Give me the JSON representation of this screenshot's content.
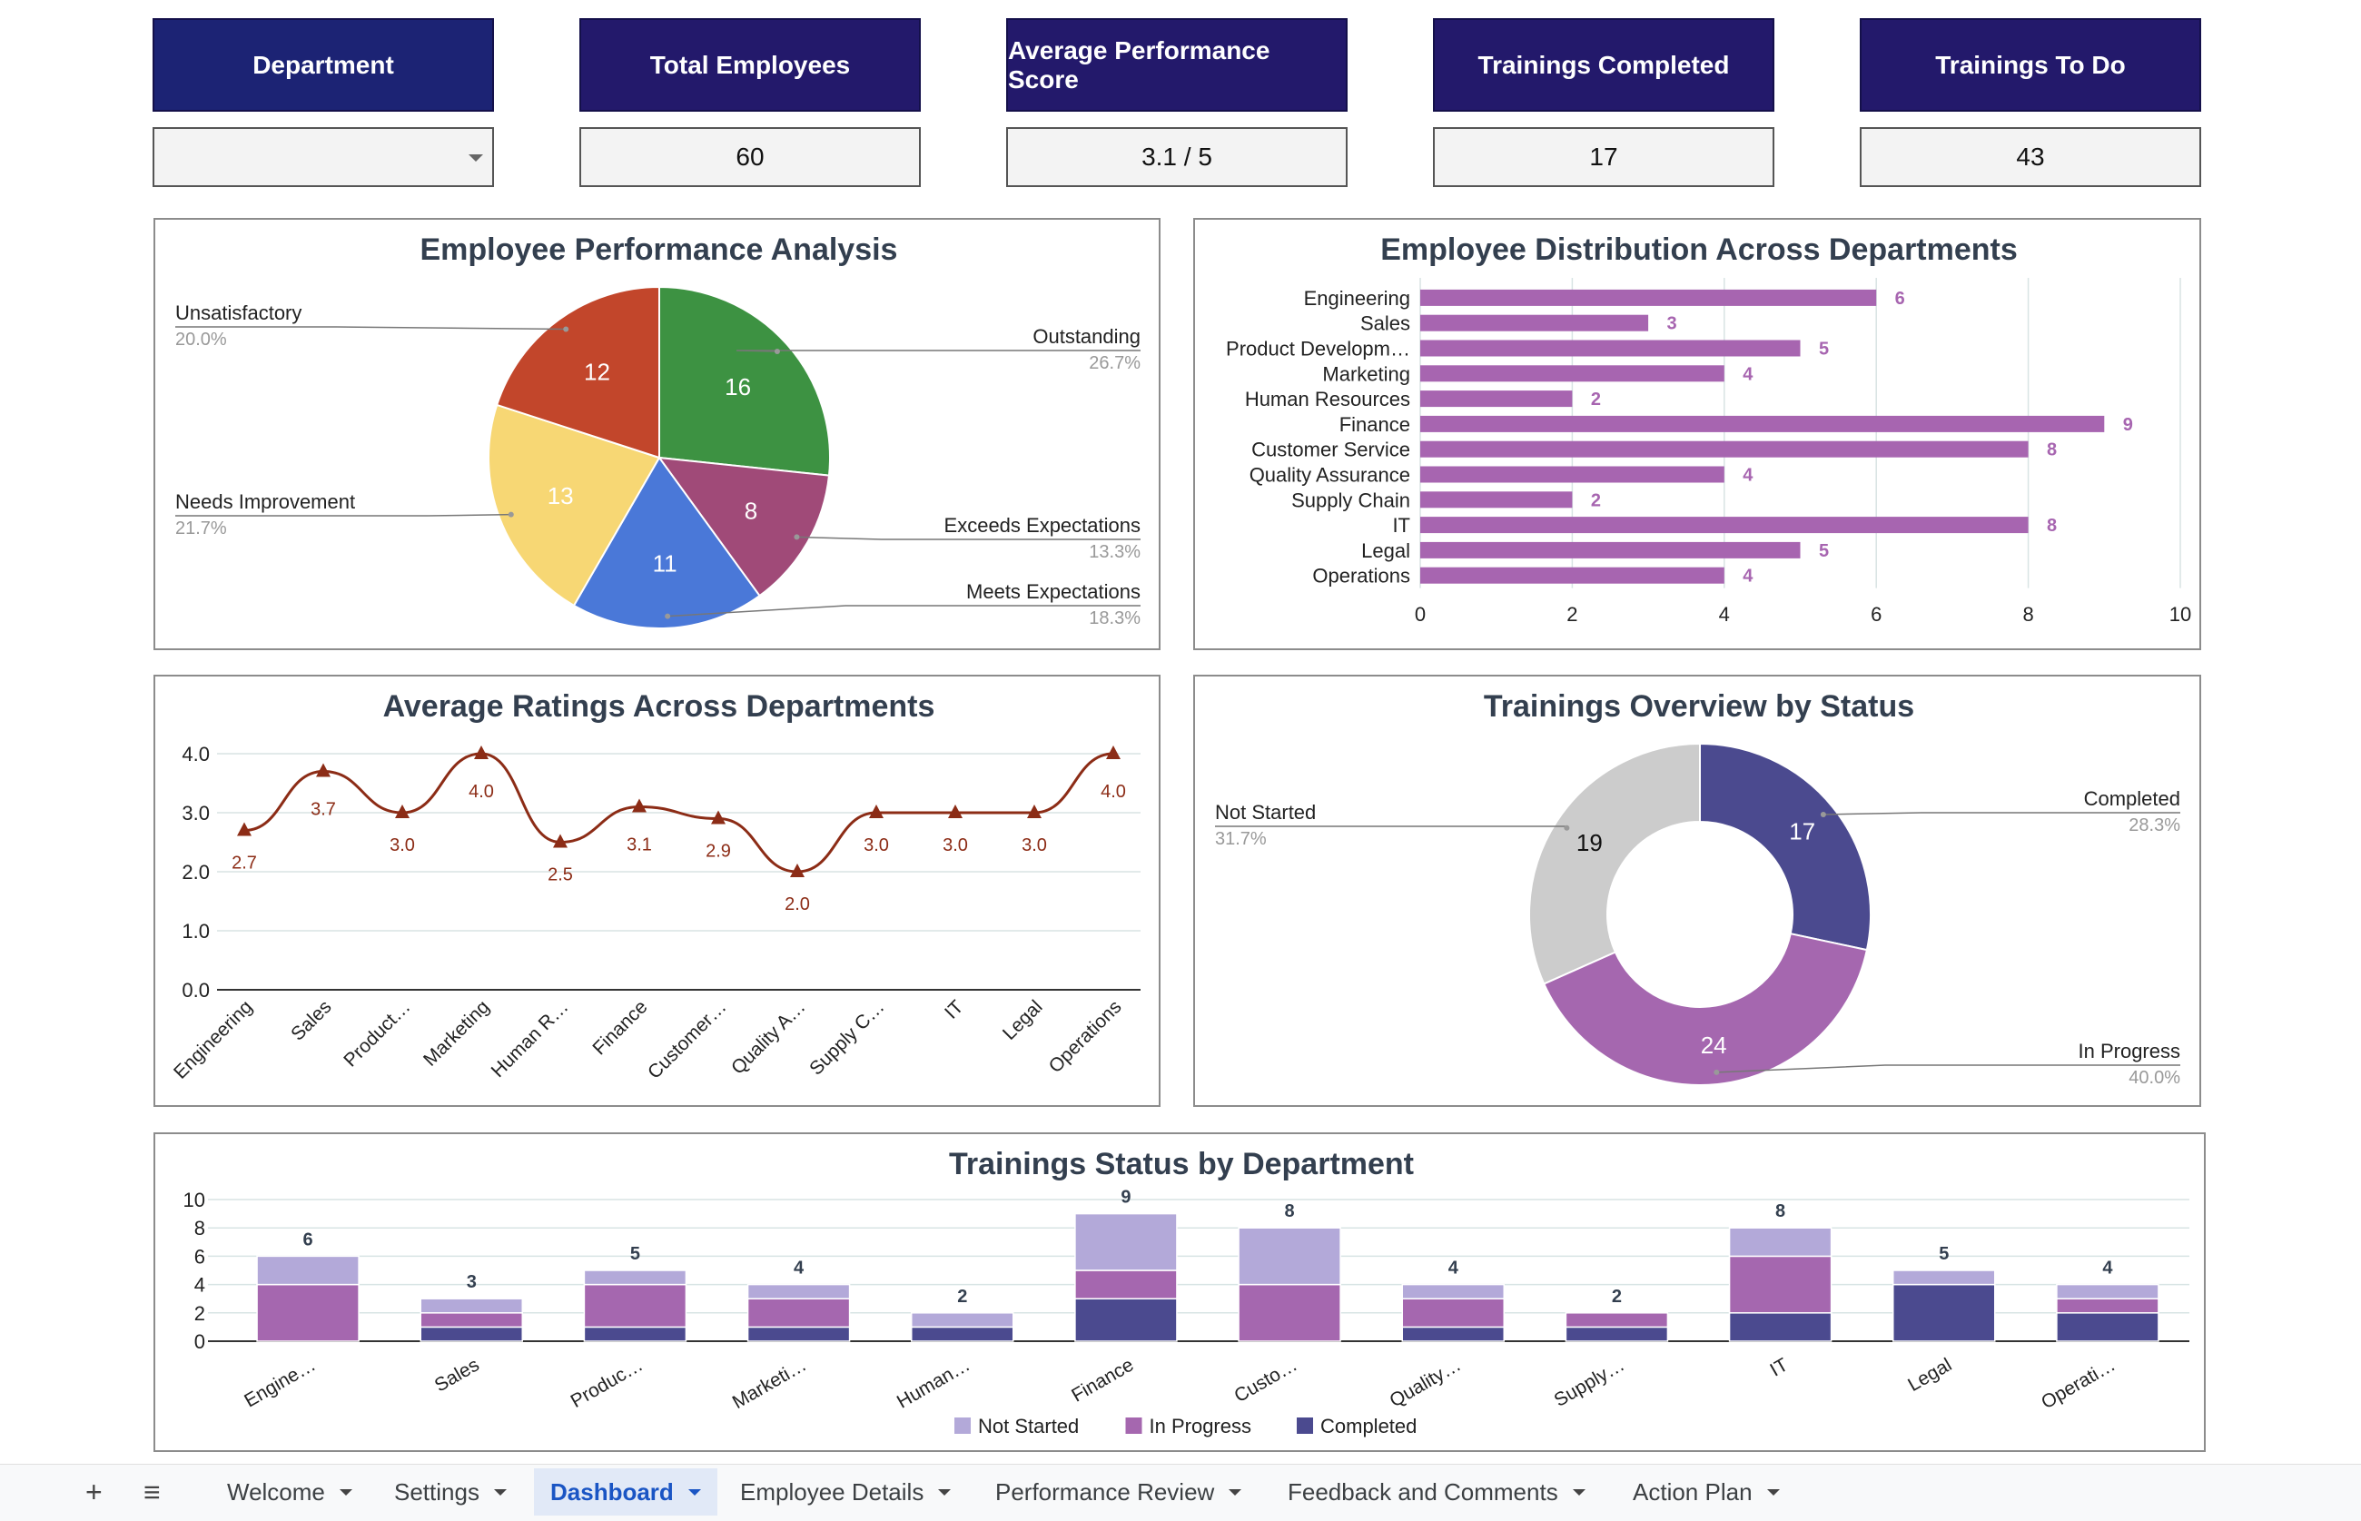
{
  "kpis": [
    {
      "label": "Department",
      "value": ""
    },
    {
      "label": "Total Employees",
      "value": "60"
    },
    {
      "label": "Average Performance Score",
      "value": "3.1 / 5"
    },
    {
      "label": "Trainings Completed",
      "value": "17"
    },
    {
      "label": "Trainings To Do",
      "value": "43"
    }
  ],
  "tabs": {
    "add_icon": "plus-icon",
    "menu_icon": "menu-icon",
    "items": [
      {
        "label": "Welcome",
        "active": false
      },
      {
        "label": "Settings",
        "active": false
      },
      {
        "label": "Dashboard",
        "active": true
      },
      {
        "label": "Employee Details",
        "active": false
      },
      {
        "label": "Performance Review",
        "active": false
      },
      {
        "label": "Feedback and Comments",
        "active": false
      },
      {
        "label": "Action Plan",
        "active": false
      }
    ]
  },
  "chart_data": [
    {
      "type": "pie",
      "title": "Employee Performance Analysis",
      "slices": [
        {
          "label": "Outstanding",
          "value": 16,
          "percent": "26.7%",
          "color": "#3d9242"
        },
        {
          "label": "Exceeds Expectations",
          "value": 8,
          "percent": "13.3%",
          "color": "#a04a78"
        },
        {
          "label": "Meets Expectations",
          "value": 11,
          "percent": "18.3%",
          "color": "#4a78d8"
        },
        {
          "label": "Needs Improvement",
          "value": 13,
          "percent": "21.7%",
          "color": "#f7d774"
        },
        {
          "label": "Unsatisfactory",
          "value": 12,
          "percent": "20.0%",
          "color": "#c2462b"
        }
      ]
    },
    {
      "type": "bar",
      "orientation": "horizontal",
      "title": "Employee Distribution Across Departments",
      "categories": [
        "Engineering",
        "Sales",
        "Product Developm…",
        "Marketing",
        "Human Resources",
        "Finance",
        "Customer Service",
        "Quality Assurance",
        "Supply Chain",
        "IT",
        "Legal",
        "Operations"
      ],
      "values": [
        6,
        3,
        5,
        4,
        2,
        9,
        8,
        4,
        2,
        8,
        5,
        4
      ],
      "xlim": [
        0,
        10
      ],
      "xticks": [
        "0",
        "2",
        "4",
        "6",
        "8",
        "10"
      ],
      "color": "#a765b0"
    },
    {
      "type": "line",
      "title": "Average Ratings Across Departments",
      "categories": [
        "Engineering",
        "Sales",
        "Product…",
        "Marketing",
        "Human R…",
        "Finance",
        "Customer…",
        "Quality A…",
        "Supply C…",
        "IT",
        "Legal",
        "Operations"
      ],
      "values": [
        2.7,
        3.7,
        3.0,
        4.0,
        2.5,
        3.1,
        2.9,
        2.0,
        3.0,
        3.0,
        3.0,
        4.0
      ],
      "value_labels": [
        "2.7",
        "3.7",
        "3.0",
        "4.0",
        "2.5",
        "3.1",
        "2.9",
        "2.0",
        "3.0",
        "3.0",
        "3.0",
        "4.0"
      ],
      "ylim": [
        0,
        4
      ],
      "yticks": [
        "0.0",
        "1.0",
        "2.0",
        "3.0",
        "4.0"
      ],
      "color": "#8c2c16"
    },
    {
      "type": "pie",
      "donut": true,
      "title": "Trainings Overview by Status",
      "slices": [
        {
          "label": "Completed",
          "value": 17,
          "percent": "28.3%",
          "color": "#4b4a8f"
        },
        {
          "label": "In Progress",
          "value": 24,
          "percent": "40.0%",
          "color": "#a567af"
        },
        {
          "label": "Not Started",
          "value": 19,
          "percent": "31.7%",
          "color": "#cccccc"
        }
      ]
    },
    {
      "type": "bar",
      "stacked": true,
      "title": "Trainings Status by Department",
      "categories": [
        "Engine…",
        "Sales",
        "Produc…",
        "Marketi…",
        "Human…",
        "Finance",
        "Custo…",
        "Quality…",
        "Supply…",
        "IT",
        "Legal",
        "Operati…"
      ],
      "totals": [
        6,
        3,
        5,
        4,
        2,
        9,
        8,
        4,
        2,
        8,
        5,
        4
      ],
      "series": [
        {
          "name": "Completed",
          "color": "#4b4a8f",
          "values": [
            0,
            1,
            1,
            1,
            1,
            3,
            0,
            1,
            1,
            2,
            4,
            2
          ]
        },
        {
          "name": "In Progress",
          "color": "#a567af",
          "values": [
            4,
            1,
            3,
            2,
            0,
            2,
            4,
            2,
            1,
            4,
            0,
            1
          ]
        },
        {
          "name": "Not Started",
          "color": "#b3a9d9",
          "values": [
            2,
            1,
            1,
            1,
            1,
            4,
            4,
            1,
            0,
            2,
            1,
            1
          ]
        }
      ],
      "legend_order": [
        "Not Started",
        "In Progress",
        "Completed"
      ],
      "ylim": [
        0,
        10
      ],
      "yticks": [
        "0",
        "2",
        "4",
        "6",
        "8",
        "10"
      ]
    }
  ]
}
